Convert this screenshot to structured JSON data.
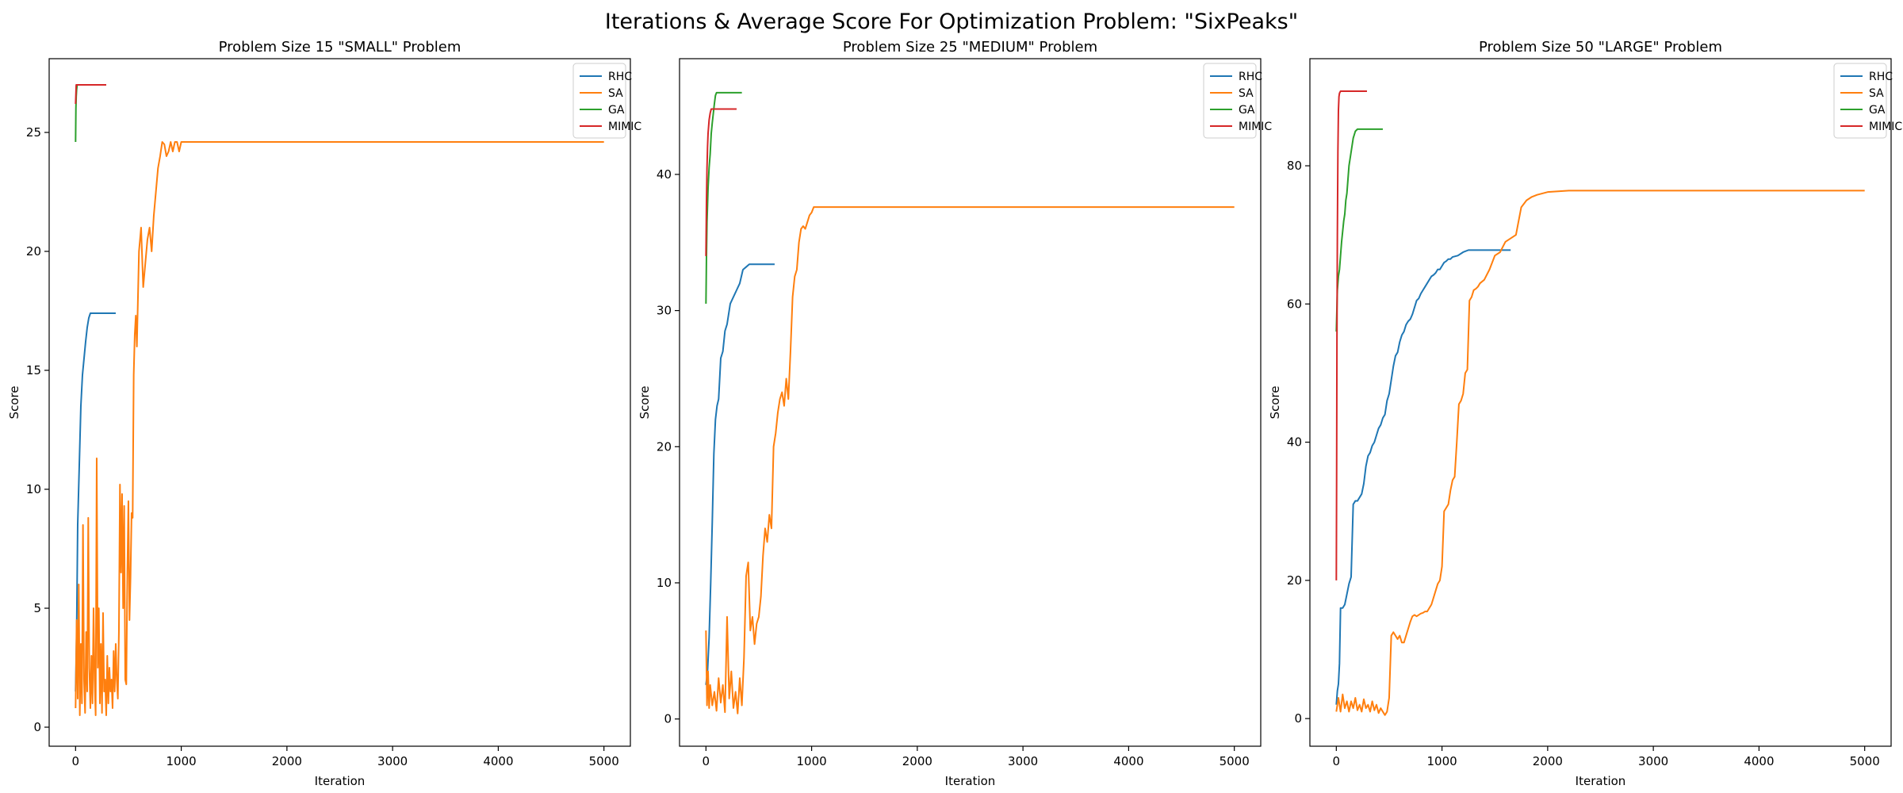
{
  "figure": {
    "suptitle": "Iterations & Average Score For Optimization Problem: \"SixPeaks\""
  },
  "chart_data": [
    {
      "type": "line",
      "title": "Problem Size 15 \"SMALL\" Problem",
      "xlabel": "Iteration",
      "ylabel": "Score",
      "xlim": [
        -250,
        5250
      ],
      "ylim": [
        -0.8,
        28.1
      ],
      "xticks": [
        0,
        1000,
        2000,
        3000,
        4000,
        5000
      ],
      "yticks": [
        0,
        5,
        10,
        15,
        20,
        25
      ],
      "legend": "top-right",
      "grid": false,
      "series": [
        {
          "name": "RHC",
          "color": "#1f77b4",
          "x": [
            0,
            10,
            20,
            35,
            50,
            65,
            80,
            95,
            110,
            125,
            140,
            160,
            200,
            250,
            300,
            380
          ],
          "y": [
            1.5,
            4.0,
            8.5,
            11.0,
            13.5,
            14.8,
            15.5,
            16.2,
            16.8,
            17.2,
            17.4,
            17.4,
            17.4,
            17.4,
            17.4,
            17.4
          ]
        },
        {
          "name": "SA",
          "color": "#ff7f0e",
          "x": [
            0,
            10,
            20,
            30,
            40,
            50,
            60,
            70,
            80,
            90,
            100,
            110,
            120,
            130,
            140,
            150,
            160,
            170,
            180,
            190,
            200,
            210,
            220,
            230,
            240,
            250,
            260,
            270,
            280,
            290,
            300,
            310,
            320,
            330,
            340,
            350,
            360,
            370,
            380,
            390,
            400,
            410,
            420,
            430,
            440,
            450,
            460,
            470,
            480,
            490,
            500,
            510,
            520,
            530,
            540,
            550,
            560,
            570,
            580,
            600,
            620,
            640,
            660,
            680,
            700,
            720,
            740,
            760,
            780,
            800,
            820,
            840,
            860,
            880,
            900,
            920,
            940,
            960,
            980,
            1000,
            1100,
            2000,
            3000,
            4000,
            5000
          ],
          "y": [
            0.8,
            4.5,
            1.2,
            6.0,
            0.5,
            3.5,
            1.0,
            8.5,
            2.0,
            0.6,
            4.0,
            1.5,
            8.8,
            2.5,
            0.8,
            3.0,
            1.0,
            5.0,
            2.0,
            0.5,
            11.3,
            2.5,
            5.0,
            1.0,
            3.5,
            0.6,
            4.8,
            1.5,
            2.0,
            0.5,
            3.0,
            1.0,
            2.5,
            1.5,
            2.0,
            0.8,
            3.2,
            1.5,
            3.5,
            2.0,
            1.2,
            4.0,
            10.2,
            6.5,
            9.8,
            5.0,
            9.3,
            2.0,
            1.8,
            6.5,
            9.5,
            4.5,
            6.3,
            9.0,
            8.8,
            14.8,
            16.5,
            17.3,
            16.0,
            20.0,
            21.0,
            18.5,
            19.5,
            20.5,
            21.0,
            20.0,
            21.5,
            22.5,
            23.5,
            24.0,
            24.6,
            24.5,
            24.0,
            24.2,
            24.6,
            24.2,
            24.6,
            24.6,
            24.2,
            24.6,
            24.6,
            24.6,
            24.6,
            24.6,
            24.6
          ]
        },
        {
          "name": "GA",
          "color": "#2ca02c",
          "x": [
            0,
            3,
            6,
            10,
            15,
            20,
            30,
            50,
            100,
            150,
            200,
            250,
            290
          ],
          "y": [
            24.6,
            26.0,
            26.5,
            26.8,
            27.0,
            27.0,
            27.0,
            27.0,
            27.0,
            27.0,
            27.0,
            27.0,
            27.0
          ]
        },
        {
          "name": "MIMIC",
          "color": "#d62728",
          "x": [
            0,
            3,
            6,
            10,
            20,
            50,
            100,
            150,
            200,
            250,
            290
          ],
          "y": [
            26.2,
            26.6,
            27.0,
            27.0,
            27.0,
            27.0,
            27.0,
            27.0,
            27.0,
            27.0,
            27.0
          ]
        }
      ]
    },
    {
      "type": "line",
      "title": "Problem Size 25 \"MEDIUM\" Problem",
      "xlabel": "Iteration",
      "ylabel": "Score",
      "xlim": [
        -250,
        5250
      ],
      "ylim": [
        -2.0,
        48.5
      ],
      "xticks": [
        0,
        1000,
        2000,
        3000,
        4000,
        5000
      ],
      "yticks": [
        0,
        10,
        20,
        30,
        40
      ],
      "legend": "top-right",
      "grid": false,
      "series": [
        {
          "name": "RHC",
          "color": "#1f77b4",
          "x": [
            0,
            15,
            30,
            45,
            60,
            75,
            90,
            105,
            120,
            140,
            160,
            180,
            200,
            230,
            260,
            290,
            320,
            350,
            380,
            410,
            450,
            500,
            560,
            650
          ],
          "y": [
            2.5,
            3.5,
            6.0,
            10.0,
            14.5,
            19.5,
            22.0,
            23.0,
            23.5,
            26.5,
            27.0,
            28.5,
            29.0,
            30.5,
            31.0,
            31.5,
            32.0,
            33.0,
            33.2,
            33.4,
            33.4,
            33.4,
            33.4,
            33.4
          ]
        },
        {
          "name": "SA",
          "color": "#ff7f0e",
          "x": [
            0,
            10,
            20,
            30,
            40,
            60,
            80,
            100,
            120,
            140,
            160,
            180,
            200,
            220,
            240,
            260,
            280,
            300,
            320,
            340,
            360,
            380,
            400,
            420,
            440,
            460,
            480,
            500,
            520,
            540,
            560,
            580,
            600,
            620,
            640,
            660,
            680,
            700,
            720,
            740,
            760,
            780,
            800,
            820,
            840,
            860,
            880,
            900,
            920,
            940,
            960,
            980,
            1000,
            1020,
            1050,
            1100,
            2000,
            3000,
            4000,
            5000
          ],
          "y": [
            6.5,
            1.0,
            3.5,
            0.8,
            2.5,
            1.0,
            2.0,
            0.6,
            3.0,
            1.2,
            2.5,
            0.5,
            7.5,
            1.5,
            3.5,
            0.8,
            2.0,
            0.4,
            3.0,
            1.0,
            4.5,
            10.5,
            11.5,
            6.5,
            7.5,
            5.5,
            7.0,
            7.5,
            9.0,
            12.0,
            14.0,
            13.0,
            15.0,
            14.0,
            20.0,
            21.0,
            22.5,
            23.5,
            24.0,
            23.0,
            25.0,
            23.5,
            27.0,
            31.0,
            32.5,
            33.0,
            35.0,
            36.0,
            36.2,
            36.0,
            36.5,
            37.0,
            37.2,
            37.6,
            37.6,
            37.6,
            37.6,
            37.6,
            37.6,
            37.6
          ]
        },
        {
          "name": "GA",
          "color": "#2ca02c",
          "x": [
            0,
            5,
            10,
            20,
            30,
            40,
            50,
            60,
            70,
            80,
            90,
            100,
            120,
            150,
            200,
            250,
            300,
            340
          ],
          "y": [
            30.5,
            34.0,
            36.5,
            39.0,
            40.5,
            41.5,
            43.0,
            43.8,
            44.5,
            45.2,
            45.8,
            46.0,
            46.0,
            46.0,
            46.0,
            46.0,
            46.0,
            46.0
          ]
        },
        {
          "name": "MIMIC",
          "color": "#d62728",
          "x": [
            0,
            5,
            10,
            15,
            20,
            30,
            40,
            50,
            60,
            80,
            100,
            150,
            200,
            250,
            290
          ],
          "y": [
            34.0,
            38.0,
            40.5,
            42.0,
            43.0,
            44.0,
            44.5,
            44.8,
            44.8,
            44.8,
            44.8,
            44.8,
            44.8,
            44.8,
            44.8
          ]
        }
      ]
    },
    {
      "type": "line",
      "title": "Problem Size 50 \"LARGE\" Problem",
      "xlabel": "Iteration",
      "ylabel": "Score",
      "xlim": [
        -250,
        5250
      ],
      "ylim": [
        -4.0,
        95.5
      ],
      "xticks": [
        0,
        1000,
        2000,
        3000,
        4000,
        5000
      ],
      "yticks": [
        0,
        20,
        40,
        60,
        80
      ],
      "legend": "top-right",
      "grid": false,
      "series": [
        {
          "name": "RHC",
          "color": "#1f77b4",
          "x": [
            0,
            10,
            20,
            30,
            40,
            60,
            80,
            100,
            120,
            140,
            160,
            180,
            200,
            220,
            240,
            260,
            280,
            300,
            320,
            340,
            360,
            380,
            400,
            420,
            440,
            460,
            480,
            500,
            520,
            540,
            560,
            580,
            600,
            620,
            640,
            660,
            680,
            700,
            720,
            740,
            760,
            780,
            800,
            820,
            840,
            860,
            880,
            900,
            920,
            940,
            960,
            980,
            1000,
            1020,
            1040,
            1060,
            1080,
            1100,
            1150,
            1200,
            1250,
            1300,
            1350,
            1400,
            1450,
            1500,
            1550,
            1600,
            1650
          ],
          "y": [
            2.0,
            4.0,
            5.0,
            8.0,
            16.0,
            16.0,
            16.5,
            18.0,
            19.5,
            20.5,
            31.0,
            31.5,
            31.5,
            32.0,
            32.5,
            34.0,
            36.5,
            38.0,
            38.5,
            39.5,
            40.0,
            41.0,
            42.0,
            42.5,
            43.5,
            44.0,
            46.0,
            47.0,
            49.0,
            51.0,
            52.5,
            53.0,
            54.5,
            55.5,
            56.0,
            57.0,
            57.5,
            57.8,
            58.5,
            59.5,
            60.5,
            60.8,
            61.5,
            62.0,
            62.5,
            63.0,
            63.5,
            64.0,
            64.2,
            64.5,
            65.0,
            65.0,
            65.5,
            66.0,
            66.2,
            66.5,
            66.5,
            66.8,
            67.0,
            67.5,
            67.8,
            67.8,
            67.8,
            67.8,
            67.8,
            67.8,
            67.8,
            67.8,
            67.8
          ]
        },
        {
          "name": "SA",
          "color": "#ff7f0e",
          "x": [
            0,
            20,
            40,
            60,
            80,
            100,
            120,
            140,
            160,
            180,
            200,
            220,
            240,
            260,
            280,
            300,
            320,
            340,
            360,
            380,
            400,
            420,
            440,
            460,
            480,
            500,
            520,
            540,
            560,
            580,
            600,
            620,
            640,
            660,
            680,
            700,
            720,
            740,
            760,
            780,
            800,
            820,
            840,
            860,
            880,
            900,
            920,
            940,
            960,
            980,
            1000,
            1020,
            1040,
            1060,
            1080,
            1100,
            1120,
            1140,
            1160,
            1180,
            1200,
            1220,
            1240,
            1260,
            1280,
            1300,
            1320,
            1340,
            1360,
            1400,
            1450,
            1500,
            1550,
            1600,
            1650,
            1700,
            1750,
            1800,
            1850,
            1900,
            1950,
            2000,
            2100,
            2200,
            2300,
            3000,
            4000,
            5000
          ],
          "y": [
            1.0,
            3.0,
            1.0,
            3.5,
            1.5,
            2.5,
            1.0,
            2.5,
            1.5,
            3.0,
            1.2,
            2.0,
            1.0,
            2.8,
            1.5,
            2.0,
            1.0,
            2.5,
            1.2,
            2.0,
            0.8,
            1.5,
            1.0,
            0.5,
            1.0,
            3.0,
            12.0,
            12.5,
            12.0,
            11.5,
            12.0,
            11.0,
            11.0,
            12.0,
            13.0,
            14.0,
            14.8,
            15.0,
            14.8,
            15.0,
            15.2,
            15.3,
            15.5,
            15.5,
            16.0,
            16.5,
            17.5,
            18.5,
            19.5,
            20.0,
            22.0,
            30.0,
            30.5,
            31.0,
            33.0,
            34.5,
            35.0,
            40.0,
            45.5,
            46.0,
            47.0,
            50.0,
            50.5,
            60.5,
            61.0,
            62.0,
            62.2,
            62.5,
            63.0,
            63.5,
            65.0,
            67.0,
            67.5,
            69.0,
            69.5,
            70.0,
            74.0,
            75.0,
            75.5,
            75.8,
            76.0,
            76.2,
            76.3,
            76.4,
            76.4,
            76.4,
            76.4,
            76.4
          ]
        },
        {
          "name": "GA",
          "color": "#2ca02c",
          "x": [
            0,
            10,
            20,
            30,
            40,
            50,
            60,
            70,
            80,
            90,
            100,
            110,
            120,
            130,
            140,
            160,
            180,
            200,
            250,
            300,
            350,
            400,
            440
          ],
          "y": [
            56.0,
            62.0,
            64.0,
            65.0,
            67.0,
            69.0,
            70.5,
            72.0,
            73.0,
            75.0,
            76.0,
            78.0,
            80.0,
            81.0,
            82.0,
            84.0,
            85.0,
            85.3,
            85.3,
            85.3,
            85.3,
            85.3,
            85.3
          ]
        },
        {
          "name": "MIMIC",
          "color": "#d62728",
          "x": [
            0,
            3,
            6,
            10,
            15,
            20,
            25,
            30,
            40,
            50,
            100,
            150,
            200,
            250,
            290
          ],
          "y": [
            20.0,
            35.0,
            55.0,
            70.0,
            82.0,
            88.0,
            90.0,
            90.5,
            90.8,
            90.8,
            90.8,
            90.8,
            90.8,
            90.8,
            90.8
          ]
        }
      ]
    }
  ]
}
